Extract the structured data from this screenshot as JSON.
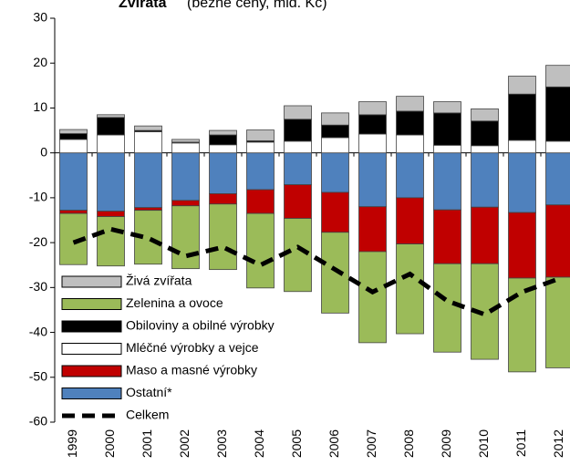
{
  "chart_data": {
    "type": "bar",
    "stacked": true,
    "title": "Zvířata",
    "subtitle": "(běžné ceny, mld. Kč)",
    "categories": [
      "1999",
      "2000",
      "2001",
      "2002",
      "2003",
      "2004",
      "2005",
      "2006",
      "2007",
      "2008",
      "2009",
      "2010",
      "2011",
      "2012"
    ],
    "ylim": [
      -60,
      30
    ],
    "yticks": [
      -60,
      -50,
      -40,
      -30,
      -20,
      -10,
      0,
      10,
      20,
      30
    ],
    "series": [
      {
        "name": "Živá zvířata",
        "color": "#bfbfbf",
        "values": [
          0.9,
          0.6,
          1,
          0.6,
          1,
          2.4,
          3,
          2.7,
          2.9,
          3.3,
          2.5,
          2.7,
          4,
          4.8
        ]
      },
      {
        "name": "Zelenina a ovoce",
        "color": "#9bbb59",
        "values": [
          -11.4,
          -11,
          -12,
          -14,
          -14.6,
          -16.6,
          -16.3,
          -18,
          -20.3,
          -20,
          -19.7,
          -21.3,
          -20.9,
          -20.2
        ]
      },
      {
        "name": "Obiloviny a obilné výrobky",
        "color": "#000000",
        "values": [
          1.3,
          3.9,
          0.3,
          0.2,
          2.2,
          0.3,
          4.9,
          2.8,
          4.3,
          5.3,
          7.2,
          5.5,
          10.3,
          12.1
        ]
      },
      {
        "name": "Mléčné výrobky a vejce",
        "color": "#ffffff",
        "values": [
          3,
          4,
          4.7,
          2.2,
          1.8,
          2.4,
          2.6,
          3.4,
          4.2,
          4,
          1.7,
          1.6,
          2.8,
          2.6
        ]
      },
      {
        "name": "Maso a masné výrobky",
        "color": "#c00000",
        "values": [
          -0.7,
          -1.2,
          -0.6,
          -1.2,
          -2.3,
          -5.3,
          -7.5,
          -8.9,
          -10,
          -10.3,
          -12,
          -12.6,
          -14.6,
          -16.1
        ]
      },
      {
        "name": "Ostatní*",
        "color": "#4f81bd",
        "values": [
          -12.8,
          -13,
          -12.2,
          -10.6,
          -9.1,
          -8.2,
          -7.1,
          -8.8,
          -12,
          -10,
          -12.7,
          -12.1,
          -13.3,
          -11.6
        ]
      },
      {
        "name": "Celkem",
        "type": "line",
        "color": "#000000",
        "values": [
          -20,
          -17,
          -19,
          -23,
          -21,
          -25,
          -21,
          -26,
          -31,
          -27,
          -33,
          -36,
          -31,
          -28
        ]
      }
    ]
  }
}
